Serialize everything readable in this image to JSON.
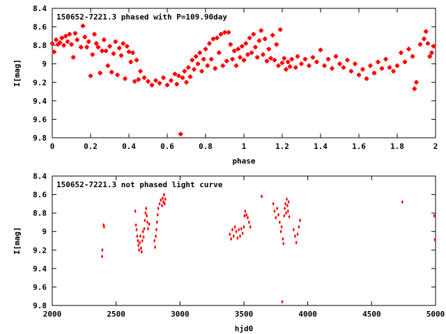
{
  "colors": {
    "points": "#ff0000",
    "axes": "#000000",
    "background": "#ffffff"
  },
  "chart_data": [
    {
      "type": "scatter",
      "title": "150652-7221.3 phased with P=109.90day",
      "xlabel": "phase",
      "ylabel": "I[mag]",
      "xlim": [
        0,
        2
      ],
      "ylim": [
        8.4,
        9.8
      ],
      "y_inverted": true,
      "grid": false,
      "xticks": [
        "0",
        "0.2",
        "0.4",
        "0.6",
        "0.8",
        "1",
        "1.2",
        "1.4",
        "1.6",
        "1.8",
        "2"
      ],
      "yticks": [
        "8.4",
        "8.6",
        "8.8",
        "9",
        "9.2",
        "9.4",
        "9.6",
        "9.8"
      ],
      "series": [
        {
          "points": [
            [
              0.0,
              8.78
            ],
            [
              0.01,
              8.87
            ],
            [
              0.02,
              8.74
            ],
            [
              0.03,
              8.79
            ],
            [
              0.04,
              8.77
            ],
            [
              0.05,
              8.72
            ],
            [
              0.06,
              8.8
            ],
            [
              0.07,
              8.7
            ],
            [
              0.08,
              8.76
            ],
            [
              0.09,
              8.68
            ],
            [
              0.1,
              8.79
            ],
            [
              0.11,
              8.93
            ],
            [
              0.12,
              8.67
            ],
            [
              0.13,
              8.74
            ],
            [
              0.15,
              8.82
            ],
            [
              0.16,
              8.59
            ],
            [
              0.17,
              8.71
            ],
            [
              0.18,
              8.82
            ],
            [
              0.19,
              8.76
            ],
            [
              0.2,
              9.13
            ],
            [
              0.21,
              8.9
            ],
            [
              0.22,
              8.68
            ],
            [
              0.23,
              8.78
            ],
            [
              0.24,
              8.82
            ],
            [
              0.25,
              9.1
            ],
            [
              0.26,
              8.86
            ],
            [
              0.27,
              8.74
            ],
            [
              0.28,
              8.86
            ],
            [
              0.29,
              9.02
            ],
            [
              0.3,
              8.81
            ],
            [
              0.31,
              9.09
            ],
            [
              0.32,
              8.89
            ],
            [
              0.33,
              8.76
            ],
            [
              0.34,
              9.12
            ],
            [
              0.35,
              8.83
            ],
            [
              0.36,
              8.91
            ],
            [
              0.37,
              8.78
            ],
            [
              0.38,
              9.16
            ],
            [
              0.39,
              8.81
            ],
            [
              0.4,
              8.87
            ],
            [
              0.41,
              8.98
            ],
            [
              0.42,
              8.88
            ],
            [
              0.43,
              9.19
            ],
            [
              0.44,
              8.96
            ],
            [
              0.45,
              9.17
            ],
            [
              0.46,
              9.08
            ],
            [
              0.48,
              9.15
            ],
            [
              0.5,
              9.19
            ],
            [
              0.52,
              9.23
            ],
            [
              0.54,
              9.18
            ],
            [
              0.56,
              9.21
            ],
            [
              0.58,
              9.15
            ],
            [
              0.6,
              9.23
            ],
            [
              0.62,
              9.18
            ],
            [
              0.64,
              9.11
            ],
            [
              0.65,
              9.22
            ],
            [
              0.66,
              9.13
            ],
            [
              0.67,
              9.76
            ],
            [
              0.68,
              9.15
            ],
            [
              0.69,
              9.08
            ],
            [
              0.7,
              9.2
            ],
            [
              0.71,
              9.04
            ],
            [
              0.72,
              9.14
            ],
            [
              0.73,
              8.96
            ],
            [
              0.74,
              9.06
            ],
            [
              0.75,
              8.92
            ],
            [
              0.76,
              9.0
            ],
            [
              0.77,
              8.88
            ],
            [
              0.78,
              9.08
            ],
            [
              0.79,
              8.95
            ],
            [
              0.8,
              8.84
            ],
            [
              0.81,
              9.02
            ],
            [
              0.82,
              8.78
            ],
            [
              0.83,
              8.95
            ],
            [
              0.84,
              8.73
            ],
            [
              0.85,
              9.05
            ],
            [
              0.86,
              8.72
            ],
            [
              0.87,
              8.88
            ],
            [
              0.88,
              8.68
            ],
            [
              0.89,
              9.02
            ],
            [
              0.9,
              8.66
            ],
            [
              0.91,
              8.97
            ],
            [
              0.92,
              8.66
            ],
            [
              0.93,
              8.79
            ],
            [
              0.94,
              8.95
            ],
            [
              0.95,
              8.86
            ],
            [
              0.96,
              9.02
            ],
            [
              0.97,
              8.84
            ],
            [
              0.98,
              8.93
            ],
            [
              0.99,
              8.81
            ],
            [
              1.0,
              8.96
            ],
            [
              1.01,
              8.78
            ],
            [
              1.02,
              8.9
            ],
            [
              1.03,
              8.72
            ],
            [
              1.04,
              8.88
            ],
            [
              1.05,
              8.68
            ],
            [
              1.06,
              8.82
            ],
            [
              1.07,
              8.93
            ],
            [
              1.08,
              8.75
            ],
            [
              1.09,
              8.64
            ],
            [
              1.1,
              8.9
            ],
            [
              1.11,
              8.73
            ],
            [
              1.12,
              8.97
            ],
            [
              1.13,
              8.84
            ],
            [
              1.14,
              8.94
            ],
            [
              1.15,
              8.69
            ],
            [
              1.16,
              8.96
            ],
            [
              1.17,
              8.79
            ],
            [
              1.18,
              9.02
            ],
            [
              1.19,
              8.63
            ],
            [
              1.2,
              8.99
            ],
            [
              1.21,
              8.94
            ],
            [
              1.22,
              9.06
            ],
            [
              1.23,
              8.98
            ],
            [
              1.24,
              9.03
            ],
            [
              1.25,
              8.95
            ],
            [
              1.27,
              9.04
            ],
            [
              1.28,
              8.92
            ],
            [
              1.3,
              9.0
            ],
            [
              1.32,
              8.95
            ],
            [
              1.34,
              9.02
            ],
            [
              1.36,
              8.93
            ],
            [
              1.38,
              8.98
            ],
            [
              1.4,
              8.85
            ],
            [
              1.42,
              9.02
            ],
            [
              1.44,
              8.95
            ],
            [
              1.46,
              9.05
            ],
            [
              1.48,
              8.92
            ],
            [
              1.5,
              9.0
            ],
            [
              1.52,
              9.04
            ],
            [
              1.54,
              8.96
            ],
            [
              1.56,
              9.08
            ],
            [
              1.58,
              9.0
            ],
            [
              1.6,
              9.12
            ],
            [
              1.62,
              9.06
            ],
            [
              1.64,
              9.16
            ],
            [
              1.66,
              9.02
            ],
            [
              1.68,
              9.1
            ],
            [
              1.7,
              8.98
            ],
            [
              1.72,
              9.05
            ],
            [
              1.74,
              8.95
            ],
            [
              1.76,
              9.04
            ],
            [
              1.78,
              9.08
            ],
            [
              1.8,
              9.02
            ],
            [
              1.82,
              8.88
            ],
            [
              1.84,
              8.98
            ],
            [
              1.86,
              8.84
            ],
            [
              1.88,
              8.92
            ],
            [
              1.89,
              9.27
            ],
            [
              1.9,
              9.2
            ],
            [
              1.92,
              8.79
            ],
            [
              1.94,
              8.73
            ],
            [
              1.95,
              8.65
            ],
            [
              1.96,
              8.78
            ],
            [
              1.97,
              8.92
            ],
            [
              1.98,
              8.88
            ],
            [
              1.99,
              8.81
            ]
          ]
        }
      ]
    },
    {
      "type": "scatter",
      "title": "150652-7221.3 not phased light curve",
      "xlabel": "hjd0",
      "ylabel": "I[mag]",
      "xlim": [
        2000,
        5000
      ],
      "ylim": [
        8.4,
        9.8
      ],
      "y_inverted": true,
      "grid": false,
      "xticks": [
        "2000",
        "2500",
        "3000",
        "3500",
        "4000",
        "4500",
        "5000"
      ],
      "yticks": [
        "8.4",
        "8.6",
        "8.8",
        "9",
        "9.2",
        "9.4",
        "9.6",
        "9.8"
      ],
      "series": [
        {
          "points": [
            [
              2390,
              9.27
            ],
            [
              2392,
              9.2
            ],
            [
              2402,
              8.93
            ],
            [
              2405,
              8.95
            ],
            [
              2650,
              8.78
            ],
            [
              2655,
              8.93
            ],
            [
              2660,
              8.98
            ],
            [
              2665,
              9.05
            ],
            [
              2670,
              9.1
            ],
            [
              2675,
              9.15
            ],
            [
              2680,
              9.2
            ],
            [
              2685,
              9.12
            ],
            [
              2690,
              9.05
            ],
            [
              2695,
              9.18
            ],
            [
              2700,
              9.22
            ],
            [
              2705,
              9.1
            ],
            [
              2710,
              9.0
            ],
            [
              2715,
              9.06
            ],
            [
              2720,
              8.97
            ],
            [
              2725,
              8.88
            ],
            [
              2730,
              8.8
            ],
            [
              2735,
              8.75
            ],
            [
              2740,
              8.83
            ],
            [
              2745,
              8.9
            ],
            [
              2750,
              8.97
            ],
            [
              2760,
              8.92
            ],
            [
              2800,
              9.1
            ],
            [
              2805,
              9.17
            ],
            [
              2810,
              9.05
            ],
            [
              2815,
              8.98
            ],
            [
              2820,
              8.9
            ],
            [
              2825,
              8.82
            ],
            [
              2830,
              8.75
            ],
            [
              2840,
              8.7
            ],
            [
              2850,
              8.66
            ],
            [
              2860,
              8.72
            ],
            [
              2865,
              8.64
            ],
            [
              2870,
              8.68
            ],
            [
              2875,
              8.6
            ],
            [
              2880,
              8.7
            ],
            [
              2885,
              8.65
            ],
            [
              3390,
              9.03
            ],
            [
              3400,
              9.08
            ],
            [
              3410,
              8.98
            ],
            [
              3420,
              9.05
            ],
            [
              3430,
              8.95
            ],
            [
              3440,
              9.0
            ],
            [
              3450,
              9.07
            ],
            [
              3460,
              8.98
            ],
            [
              3470,
              9.05
            ],
            [
              3480,
              8.97
            ],
            [
              3490,
              9.02
            ],
            [
              3500,
              8.95
            ],
            [
              3505,
              8.83
            ],
            [
              3510,
              8.78
            ],
            [
              3520,
              8.82
            ],
            [
              3530,
              8.85
            ],
            [
              3540,
              8.9
            ],
            [
              3550,
              8.95
            ],
            [
              3640,
              8.62
            ],
            [
              3730,
              8.7
            ],
            [
              3740,
              8.78
            ],
            [
              3750,
              8.85
            ],
            [
              3760,
              8.75
            ],
            [
              3770,
              8.82
            ],
            [
              3780,
              8.9
            ],
            [
              3790,
              9.0
            ],
            [
              3795,
              8.95
            ],
            [
              3800,
              9.76
            ],
            [
              3805,
              9.08
            ],
            [
              3810,
              9.13
            ],
            [
              3815,
              8.83
            ],
            [
              3820,
              8.75
            ],
            [
              3825,
              8.7
            ],
            [
              3830,
              8.8
            ],
            [
              3835,
              8.65
            ],
            [
              3840,
              8.72
            ],
            [
              3845,
              8.78
            ],
            [
              3850,
              8.68
            ],
            [
              3855,
              8.84
            ],
            [
              3890,
              8.98
            ],
            [
              3900,
              9.05
            ],
            [
              3910,
              9.12
            ],
            [
              3920,
              9.03
            ],
            [
              3930,
              8.95
            ],
            [
              3940,
              8.88
            ],
            [
              4740,
              8.68
            ],
            [
              4990,
              8.83
            ],
            [
              4995,
              9.09
            ]
          ]
        }
      ]
    }
  ]
}
